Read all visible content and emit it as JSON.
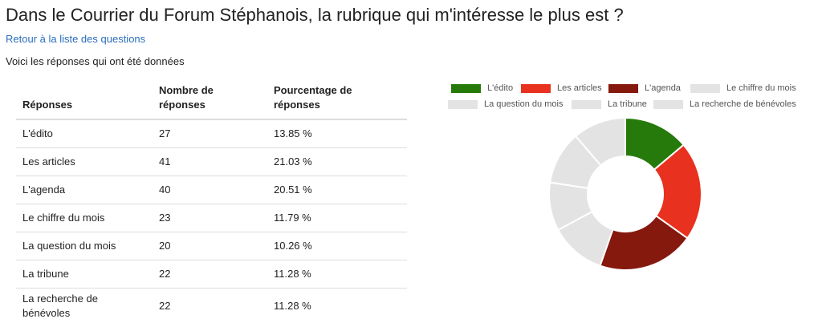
{
  "title": "Dans le Courrier du Forum Stéphanois, la rubrique qui m'intéresse le plus est ?",
  "back_link": "Retour à la liste des questions",
  "intro": "Voici les réponses qui ont été données",
  "table": {
    "headers": [
      "Réponses",
      "Nombre de réponses",
      "Pourcentage de réponses"
    ],
    "rows": [
      [
        "L'édito",
        "27",
        "13.85 %"
      ],
      [
        "Les articles",
        "41",
        "21.03 %"
      ],
      [
        "L'agenda",
        "40",
        "20.51 %"
      ],
      [
        "Le chiffre du mois",
        "23",
        "11.79 %"
      ],
      [
        "La question du mois",
        "20",
        "10.26 %"
      ],
      [
        "La tribune",
        "22",
        "11.28 %"
      ],
      [
        "La recherche de bénévoles",
        "22",
        "11.28 %"
      ]
    ]
  },
  "chart_data": {
    "type": "pie",
    "donut": true,
    "legend_position": "top",
    "categories": [
      "L'édito",
      "Les articles",
      "L'agenda",
      "Le chiffre du mois",
      "La question du mois",
      "La tribune",
      "La recherche de bénévoles"
    ],
    "values": [
      27,
      41,
      40,
      23,
      20,
      22,
      22
    ],
    "colors": [
      "#267a0b",
      "#e8311f",
      "#85190e",
      "#e3e3e3",
      "#e3e3e3",
      "#e3e3e3",
      "#e3e3e3"
    ]
  }
}
